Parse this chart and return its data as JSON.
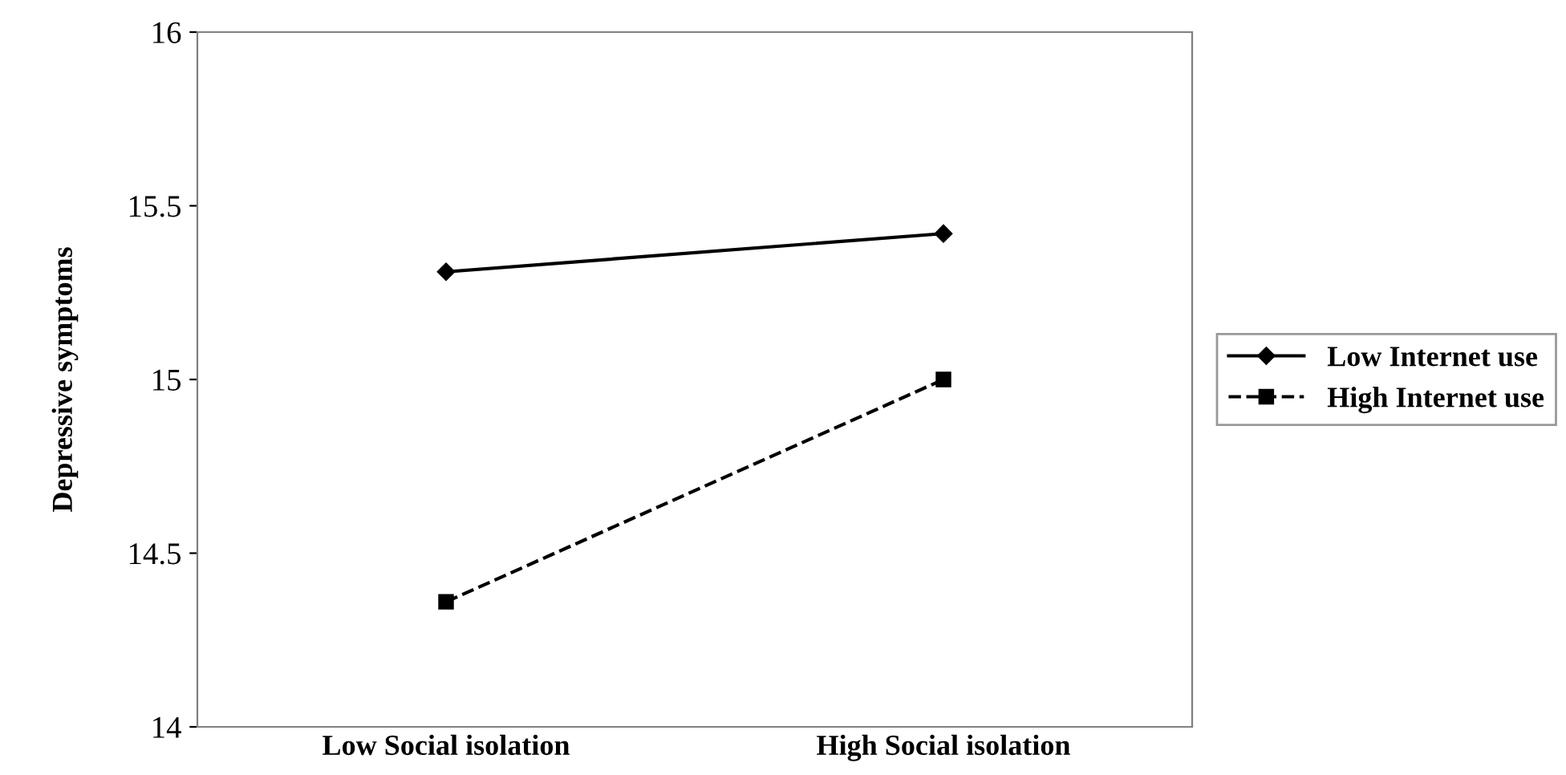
{
  "chart_data": {
    "type": "line",
    "ylabel": "Depressive symptoms",
    "categories": [
      "Low Social isolation",
      "High Social isolation"
    ],
    "series": [
      {
        "name": "Low Internet use",
        "color": "#000000",
        "values": [
          15.31,
          15.42
        ],
        "marker": "diamond",
        "line_style": "solid"
      },
      {
        "name": "High Internet use",
        "color": "#000000",
        "values": [
          14.36,
          15.0
        ],
        "marker": "square",
        "line_style": "dashed"
      }
    ],
    "ylim": [
      14,
      16
    ],
    "yticks": [
      14,
      14.5,
      15,
      15.5,
      16
    ],
    "grid": false,
    "legend": "right"
  }
}
